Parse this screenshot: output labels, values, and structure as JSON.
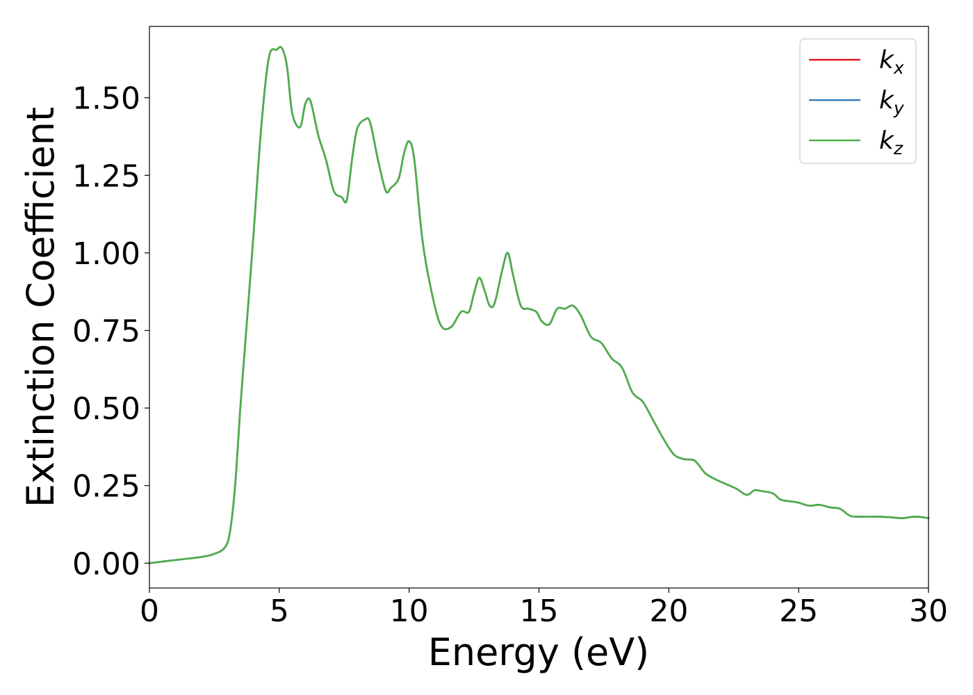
{
  "chart_data": {
    "type": "line",
    "title": "",
    "xlabel": "Energy (eV)",
    "ylabel": "Extinction Coefficient",
    "xlim": [
      0,
      30
    ],
    "ylim": [
      -0.08,
      1.73
    ],
    "x_ticks": [
      0,
      5,
      10,
      15,
      20,
      25,
      30
    ],
    "x_tick_labels": [
      "0",
      "5",
      "10",
      "15",
      "20",
      "25",
      "30"
    ],
    "y_ticks": [
      0,
      0.25,
      0.5,
      0.75,
      1.0,
      1.25,
      1.5
    ],
    "y_tick_labels": [
      "0.00",
      "0.25",
      "0.50",
      "0.75",
      "1.00",
      "1.25",
      "1.50"
    ],
    "grid": false,
    "legend_position": "top-right",
    "legend": [
      {
        "base": "k",
        "sub": "x",
        "color": "#e41a1c"
      },
      {
        "base": "k",
        "sub": "y",
        "color": "#377eb8"
      },
      {
        "base": "k",
        "sub": "z",
        "color": "#4daf4a"
      }
    ],
    "series": [
      {
        "name": "k_x",
        "color": "#e41a1c",
        "x": [
          0,
          1,
          2,
          2.5,
          2.9,
          3.1,
          3.3,
          3.5,
          3.7,
          4.0,
          4.3,
          4.6,
          4.9,
          5.1,
          5.3,
          5.5,
          5.8,
          6.0,
          6.2,
          6.5,
          6.8,
          7.1,
          7.4,
          7.6,
          7.8,
          8.0,
          8.3,
          8.5,
          8.8,
          9.1,
          9.3,
          9.6,
          9.8,
          10.0,
          10.2,
          10.5,
          10.8,
          11.2,
          11.6,
          12.0,
          12.3,
          12.5,
          12.7,
          12.9,
          13.1,
          13.3,
          13.6,
          13.8,
          14.0,
          14.3,
          14.6,
          14.9,
          15.1,
          15.4,
          15.7,
          16.0,
          16.3,
          16.6,
          17.0,
          17.4,
          17.8,
          18.2,
          18.6,
          19.0,
          19.4,
          19.8,
          20.2,
          20.6,
          21.0,
          21.4,
          21.8,
          22.2,
          22.6,
          23.0,
          23.3,
          23.6,
          24.0,
          24.3,
          24.6,
          25.0,
          25.4,
          25.8,
          26.2,
          26.6,
          27.0,
          27.5,
          28.0,
          28.5,
          29.0,
          29.5,
          30.0
        ],
        "y": [
          0.0,
          0.01,
          0.02,
          0.03,
          0.05,
          0.1,
          0.25,
          0.5,
          0.72,
          1.05,
          1.4,
          1.63,
          1.655,
          1.66,
          1.6,
          1.45,
          1.405,
          1.48,
          1.49,
          1.38,
          1.3,
          1.2,
          1.18,
          1.17,
          1.3,
          1.4,
          1.43,
          1.42,
          1.3,
          1.2,
          1.21,
          1.24,
          1.32,
          1.36,
          1.3,
          1.05,
          0.9,
          0.77,
          0.76,
          0.81,
          0.81,
          0.87,
          0.92,
          0.88,
          0.83,
          0.84,
          0.95,
          1.0,
          0.93,
          0.83,
          0.82,
          0.81,
          0.78,
          0.77,
          0.82,
          0.82,
          0.83,
          0.8,
          0.73,
          0.71,
          0.66,
          0.63,
          0.55,
          0.52,
          0.46,
          0.4,
          0.35,
          0.335,
          0.33,
          0.29,
          0.27,
          0.255,
          0.24,
          0.22,
          0.235,
          0.232,
          0.225,
          0.205,
          0.2,
          0.195,
          0.185,
          0.188,
          0.18,
          0.175,
          0.152,
          0.15,
          0.15,
          0.148,
          0.145,
          0.15,
          0.145
        ]
      },
      {
        "name": "k_y",
        "color": "#377eb8",
        "x": [
          0,
          1,
          2,
          2.5,
          2.9,
          3.1,
          3.3,
          3.5,
          3.7,
          4.0,
          4.3,
          4.6,
          4.9,
          5.1,
          5.3,
          5.5,
          5.8,
          6.0,
          6.2,
          6.5,
          6.8,
          7.1,
          7.4,
          7.6,
          7.8,
          8.0,
          8.3,
          8.5,
          8.8,
          9.1,
          9.3,
          9.6,
          9.8,
          10.0,
          10.2,
          10.5,
          10.8,
          11.2,
          11.6,
          12.0,
          12.3,
          12.5,
          12.7,
          12.9,
          13.1,
          13.3,
          13.6,
          13.8,
          14.0,
          14.3,
          14.6,
          14.9,
          15.1,
          15.4,
          15.7,
          16.0,
          16.3,
          16.6,
          17.0,
          17.4,
          17.8,
          18.2,
          18.6,
          19.0,
          19.4,
          19.8,
          20.2,
          20.6,
          21.0,
          21.4,
          21.8,
          22.2,
          22.6,
          23.0,
          23.3,
          23.6,
          24.0,
          24.3,
          24.6,
          25.0,
          25.4,
          25.8,
          26.2,
          26.6,
          27.0,
          27.5,
          28.0,
          28.5,
          29.0,
          29.5,
          30.0
        ],
        "y": [
          0.0,
          0.01,
          0.02,
          0.03,
          0.05,
          0.1,
          0.25,
          0.5,
          0.72,
          1.05,
          1.4,
          1.63,
          1.655,
          1.66,
          1.6,
          1.45,
          1.405,
          1.48,
          1.49,
          1.38,
          1.3,
          1.2,
          1.18,
          1.17,
          1.3,
          1.4,
          1.43,
          1.42,
          1.3,
          1.2,
          1.21,
          1.24,
          1.32,
          1.36,
          1.3,
          1.05,
          0.9,
          0.77,
          0.76,
          0.81,
          0.81,
          0.87,
          0.92,
          0.88,
          0.83,
          0.84,
          0.95,
          1.0,
          0.93,
          0.83,
          0.82,
          0.81,
          0.78,
          0.77,
          0.82,
          0.82,
          0.83,
          0.8,
          0.73,
          0.71,
          0.66,
          0.63,
          0.55,
          0.52,
          0.46,
          0.4,
          0.35,
          0.335,
          0.33,
          0.29,
          0.27,
          0.255,
          0.24,
          0.22,
          0.235,
          0.232,
          0.225,
          0.205,
          0.2,
          0.195,
          0.185,
          0.188,
          0.18,
          0.175,
          0.152,
          0.15,
          0.15,
          0.148,
          0.145,
          0.15,
          0.145
        ]
      },
      {
        "name": "k_z",
        "color": "#4daf4a",
        "x": [
          0,
          1,
          2,
          2.5,
          2.9,
          3.1,
          3.3,
          3.5,
          3.7,
          4.0,
          4.3,
          4.6,
          4.9,
          5.1,
          5.3,
          5.5,
          5.8,
          6.0,
          6.2,
          6.5,
          6.8,
          7.1,
          7.4,
          7.6,
          7.8,
          8.0,
          8.3,
          8.5,
          8.8,
          9.1,
          9.3,
          9.6,
          9.8,
          10.0,
          10.2,
          10.5,
          10.8,
          11.2,
          11.6,
          12.0,
          12.3,
          12.5,
          12.7,
          12.9,
          13.1,
          13.3,
          13.6,
          13.8,
          14.0,
          14.3,
          14.6,
          14.9,
          15.1,
          15.4,
          15.7,
          16.0,
          16.3,
          16.6,
          17.0,
          17.4,
          17.8,
          18.2,
          18.6,
          19.0,
          19.4,
          19.8,
          20.2,
          20.6,
          21.0,
          21.4,
          21.8,
          22.2,
          22.6,
          23.0,
          23.3,
          23.6,
          24.0,
          24.3,
          24.6,
          25.0,
          25.4,
          25.8,
          26.2,
          26.6,
          27.0,
          27.5,
          28.0,
          28.5,
          29.0,
          29.5,
          30.0
        ],
        "y": [
          0.0,
          0.01,
          0.02,
          0.03,
          0.05,
          0.1,
          0.25,
          0.5,
          0.72,
          1.05,
          1.4,
          1.63,
          1.655,
          1.66,
          1.6,
          1.45,
          1.405,
          1.48,
          1.49,
          1.38,
          1.3,
          1.2,
          1.18,
          1.17,
          1.3,
          1.4,
          1.43,
          1.42,
          1.3,
          1.2,
          1.21,
          1.24,
          1.32,
          1.36,
          1.3,
          1.05,
          0.9,
          0.77,
          0.76,
          0.81,
          0.81,
          0.87,
          0.92,
          0.88,
          0.83,
          0.84,
          0.95,
          1.0,
          0.93,
          0.83,
          0.82,
          0.81,
          0.78,
          0.77,
          0.82,
          0.82,
          0.83,
          0.8,
          0.73,
          0.71,
          0.66,
          0.63,
          0.55,
          0.52,
          0.46,
          0.4,
          0.35,
          0.335,
          0.33,
          0.29,
          0.27,
          0.255,
          0.24,
          0.22,
          0.235,
          0.232,
          0.225,
          0.205,
          0.2,
          0.195,
          0.185,
          0.188,
          0.18,
          0.175,
          0.152,
          0.15,
          0.15,
          0.148,
          0.145,
          0.15,
          0.145
        ]
      }
    ]
  }
}
